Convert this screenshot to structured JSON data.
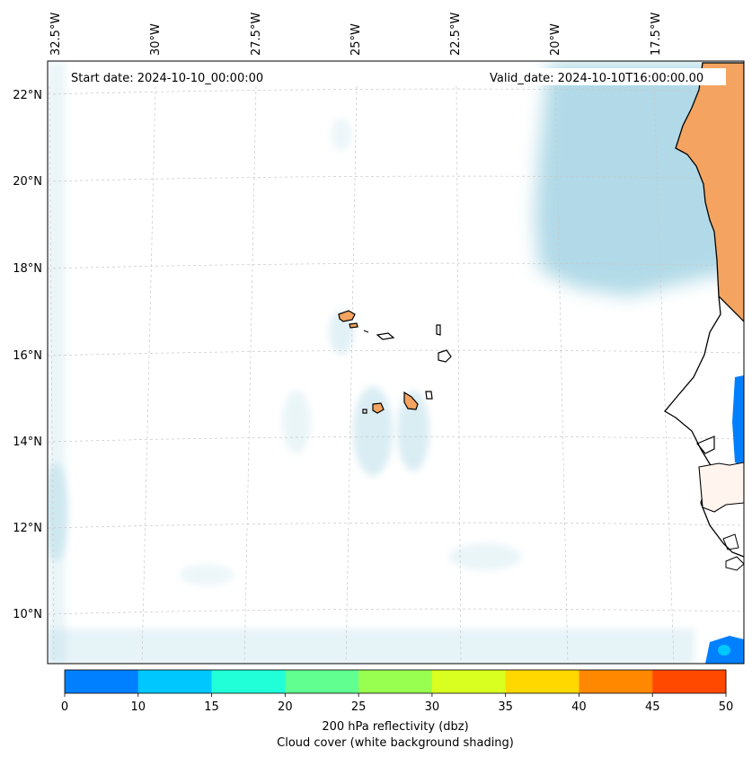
{
  "map": {
    "start_date": "Start date: 2024-10-10_00:00:00",
    "valid_date": "Valid_date: 2024-10-10T16:00:00.00",
    "lon_labels": [
      "32.5°W",
      "30°W",
      "27.5°W",
      "25°W",
      "22.5°W",
      "20°W",
      "17.5°W"
    ],
    "lat_labels": [
      "22°N",
      "20°N",
      "18°N",
      "16°N",
      "14°N",
      "12°N",
      "10°N"
    ],
    "land_color": "#f4a460",
    "cloud_color": "#add8e6",
    "coast_color": "#000000"
  },
  "colorbar": {
    "colors": [
      "#0080ff",
      "#00c8ff",
      "#20ffd8",
      "#60ff90",
      "#98ff50",
      "#d8ff20",
      "#ffd800",
      "#ff8800",
      "#ff4800"
    ],
    "ticks": [
      "0",
      "10",
      "15",
      "20",
      "25",
      "30",
      "35",
      "40",
      "45",
      "50"
    ],
    "label1": "200 hPa reflectivity (dbz)",
    "label2": "Cloud cover (white background shading)"
  }
}
